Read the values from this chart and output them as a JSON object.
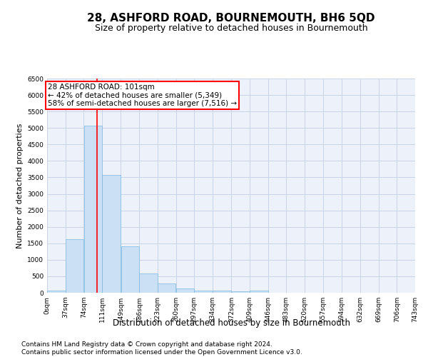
{
  "title": "28, ASHFORD ROAD, BOURNEMOUTH, BH6 5QD",
  "subtitle": "Size of property relative to detached houses in Bournemouth",
  "xlabel": "Distribution of detached houses by size in Bournemouth",
  "ylabel": "Number of detached properties",
  "footer_line1": "Contains HM Land Registry data © Crown copyright and database right 2024.",
  "footer_line2": "Contains public sector information licensed under the Open Government Licence v3.0.",
  "bar_edges": [
    0,
    37,
    74,
    111,
    149,
    186,
    223,
    260,
    297,
    334,
    372,
    409,
    446,
    483,
    520,
    557,
    594,
    632,
    669,
    706,
    743
  ],
  "bar_heights": [
    75,
    1625,
    5075,
    3575,
    1400,
    575,
    275,
    125,
    75,
    75,
    50,
    75,
    0,
    0,
    0,
    0,
    0,
    0,
    0,
    0
  ],
  "tick_labels": [
    "0sqm",
    "37sqm",
    "74sqm",
    "111sqm",
    "149sqm",
    "186sqm",
    "223sqm",
    "260sqm",
    "297sqm",
    "334sqm",
    "372sqm",
    "409sqm",
    "446sqm",
    "483sqm",
    "520sqm",
    "557sqm",
    "594sqm",
    "632sqm",
    "669sqm",
    "706sqm",
    "743sqm"
  ],
  "bar_color": "#cce0f5",
  "bar_edge_color": "#7ab8e0",
  "grid_color": "#c8d4e8",
  "vline_x": 101,
  "vline_color": "red",
  "annotation_text": "28 ASHFORD ROAD: 101sqm\n← 42% of detached houses are smaller (5,349)\n58% of semi-detached houses are larger (7,516) →",
  "annotation_box_color": "red",
  "annotation_text_color": "black",
  "annotation_bg_color": "white",
  "ylim": [
    0,
    6500
  ],
  "xlim": [
    0,
    743
  ],
  "yticks": [
    0,
    500,
    1000,
    1500,
    2000,
    2500,
    3000,
    3500,
    4000,
    4500,
    5000,
    5500,
    6000,
    6500
  ],
  "bg_color": "#edf2fa",
  "title_fontsize": 11,
  "subtitle_fontsize": 9,
  "tick_fontsize": 6.5,
  "ylabel_fontsize": 8,
  "xlabel_fontsize": 8.5,
  "footer_fontsize": 6.5,
  "ann_fontsize": 7.5
}
